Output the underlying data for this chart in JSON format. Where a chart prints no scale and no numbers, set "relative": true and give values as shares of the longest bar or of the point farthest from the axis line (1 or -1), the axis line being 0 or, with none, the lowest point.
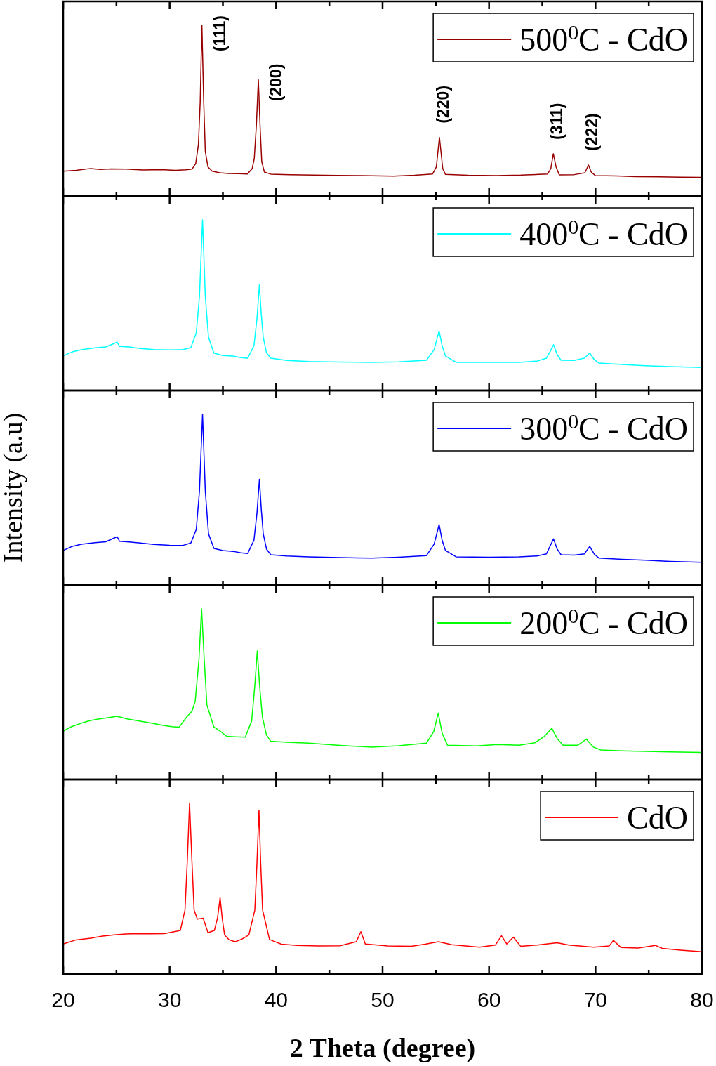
{
  "chart_data": [
    {
      "type": "line",
      "relative": true,
      "xlim": [
        20,
        80
      ],
      "xticks": [
        20,
        {
          "value": 25,
          "label": null
        },
        30,
        {
          "value": 35,
          "label": null
        },
        40,
        {
          "value": 45,
          "label": null
        },
        50,
        {
          "value": 55,
          "label": null
        },
        60,
        {
          "value": 65,
          "label": null
        },
        70,
        {
          "value": 75,
          "label": null
        },
        80
      ],
      "tick_labels": false,
      "legend": "top right",
      "annotations": [
        {
          "text": "(111)",
          "x": 33.03,
          "y": 1.0
        },
        {
          "text": "(200)",
          "x": 38.33,
          "y": 0.681
        },
        {
          "text": "(220)",
          "x": 55.34,
          "y": 0.343
        },
        {
          "text": "(311)",
          "x": 66.04,
          "y": 0.247
        },
        {
          "text": "(222)",
          "x": 69.34,
          "y": 0.181
        }
      ],
      "series": [
        {
          "name": "500$^{0}$C - CdO",
          "color": "#990000",
          "x": [
            20,
            21.2,
            22.6,
            23.5,
            24.5,
            25.9,
            27.5,
            29.2,
            30.5,
            31.5,
            32.1,
            32.45,
            32.7,
            32.87,
            33.03,
            33.2,
            33.35,
            33.6,
            34.0,
            34.7,
            35.5,
            36.5,
            37.3,
            37.75,
            37.95,
            38.15,
            38.33,
            38.5,
            38.65,
            38.9,
            39.5,
            41.3,
            43.5,
            45.7,
            48.0,
            51.0,
            53.0,
            54.7,
            55.05,
            55.2,
            55.34,
            55.5,
            55.65,
            55.9,
            58.0,
            60.7,
            63.0,
            65.5,
            65.8,
            66.04,
            66.3,
            66.6,
            68.0,
            69.0,
            69.34,
            69.6,
            70.0,
            72.0,
            73.8,
            76.0,
            78.0,
            80
          ],
          "values": [
            0.145,
            0.15,
            0.161,
            0.155,
            0.158,
            0.157,
            0.152,
            0.154,
            0.15,
            0.153,
            0.157,
            0.19,
            0.3,
            0.55,
            1.0,
            0.55,
            0.26,
            0.17,
            0.145,
            0.136,
            0.132,
            0.131,
            0.129,
            0.16,
            0.22,
            0.42,
            0.681,
            0.4,
            0.2,
            0.14,
            0.128,
            0.124,
            0.122,
            0.12,
            0.119,
            0.116,
            0.121,
            0.129,
            0.17,
            0.26,
            0.343,
            0.25,
            0.16,
            0.127,
            0.121,
            0.119,
            0.122,
            0.129,
            0.16,
            0.247,
            0.17,
            0.123,
            0.125,
            0.136,
            0.181,
            0.14,
            0.119,
            0.117,
            0.113,
            0.112,
            0.11,
            0.109
          ]
        }
      ]
    },
    {
      "type": "line",
      "relative": true,
      "xlim": [
        20,
        80
      ],
      "xticks": [
        20,
        {
          "value": 25,
          "label": null
        },
        30,
        {
          "value": 35,
          "label": null
        },
        40,
        {
          "value": 45,
          "label": null
        },
        50,
        {
          "value": 55,
          "label": null
        },
        60,
        {
          "value": 65,
          "label": null
        },
        70,
        {
          "value": 75,
          "label": null
        },
        80
      ],
      "tick_labels": false,
      "legend": "top right",
      "series": [
        {
          "name": "400$^{0}$C - CdO",
          "color": "#00ffff",
          "x": [
            20,
            20.8,
            21.7,
            23.0,
            24.0,
            25.07,
            25.3,
            26.2,
            27.25,
            28.5,
            30.0,
            31.2,
            31.99,
            32.5,
            32.8,
            33.09,
            33.35,
            33.65,
            34.16,
            35.0,
            35.94,
            36.7,
            37.33,
            37.92,
            38.2,
            38.43,
            38.6,
            38.79,
            39.1,
            39.5,
            41.0,
            43.06,
            46.0,
            48.98,
            51.5,
            54.12,
            54.84,
            55.31,
            55.6,
            55.91,
            56.9,
            60.0,
            62.82,
            64.5,
            65.39,
            65.75,
            66.06,
            66.4,
            66.77,
            68.0,
            68.95,
            69.46,
            69.9,
            70.33,
            72.5,
            74.68,
            77.0,
            80
          ],
          "values": [
            0.202,
            0.225,
            0.239,
            0.25,
            0.255,
            0.283,
            0.258,
            0.255,
            0.246,
            0.24,
            0.238,
            0.239,
            0.251,
            0.337,
            0.55,
            1.0,
            0.55,
            0.312,
            0.219,
            0.205,
            0.202,
            0.192,
            0.189,
            0.263,
            0.42,
            0.619,
            0.45,
            0.312,
            0.22,
            0.189,
            0.176,
            0.17,
            0.167,
            0.165,
            0.168,
            0.177,
            0.239,
            0.349,
            0.26,
            0.202,
            0.165,
            0.165,
            0.165,
            0.172,
            0.189,
            0.23,
            0.268,
            0.21,
            0.177,
            0.176,
            0.189,
            0.219,
            0.18,
            0.16,
            0.152,
            0.145,
            0.14,
            0.135
          ]
        }
      ]
    },
    {
      "type": "line",
      "relative": true,
      "xlim": [
        20,
        80
      ],
      "xticks": [
        20,
        {
          "value": 25,
          "label": null
        },
        30,
        {
          "value": 35,
          "label": null
        },
        40,
        {
          "value": 45,
          "label": null
        },
        50,
        {
          "value": 55,
          "label": null
        },
        60,
        {
          "value": 65,
          "label": null
        },
        70,
        {
          "value": 75,
          "label": null
        },
        80
      ],
      "tick_labels": false,
      "legend": "top right",
      "ylabel": "Intensity (a.u)",
      "series": [
        {
          "name": "300$^{0}$C - CdO",
          "color": "#0000ff",
          "x": [
            20,
            20.8,
            21.7,
            23.0,
            24.0,
            25.07,
            25.3,
            26.2,
            27.25,
            28.5,
            30.0,
            31.2,
            31.99,
            32.5,
            32.8,
            33.09,
            33.35,
            33.65,
            34.16,
            35.0,
            35.94,
            36.7,
            37.33,
            37.92,
            38.2,
            38.43,
            38.6,
            38.79,
            39.1,
            39.5,
            41.0,
            43.06,
            46.0,
            48.98,
            51.5,
            54.12,
            54.84,
            55.31,
            55.6,
            55.91,
            56.9,
            60.0,
            62.82,
            64.5,
            65.39,
            65.75,
            66.06,
            66.4,
            66.77,
            68.0,
            68.95,
            69.46,
            69.9,
            70.33,
            72.5,
            74.68,
            77.0,
            80
          ],
          "values": [
            0.202,
            0.225,
            0.239,
            0.248,
            0.253,
            0.283,
            0.256,
            0.252,
            0.246,
            0.238,
            0.233,
            0.231,
            0.246,
            0.325,
            0.55,
            1.0,
            0.55,
            0.3,
            0.214,
            0.202,
            0.197,
            0.188,
            0.184,
            0.263,
            0.42,
            0.619,
            0.45,
            0.3,
            0.21,
            0.177,
            0.17,
            0.165,
            0.16,
            0.157,
            0.163,
            0.172,
            0.239,
            0.354,
            0.26,
            0.202,
            0.165,
            0.163,
            0.165,
            0.17,
            0.182,
            0.23,
            0.27,
            0.21,
            0.177,
            0.175,
            0.182,
            0.226,
            0.18,
            0.157,
            0.15,
            0.145,
            0.138,
            0.133
          ]
        }
      ]
    },
    {
      "type": "line",
      "relative": true,
      "xlim": [
        20,
        80
      ],
      "xticks": [
        20,
        {
          "value": 25,
          "label": null
        },
        30,
        {
          "value": 35,
          "label": null
        },
        40,
        {
          "value": 45,
          "label": null
        },
        50,
        {
          "value": 55,
          "label": null
        },
        60,
        {
          "value": 65,
          "label": null
        },
        70,
        {
          "value": 75,
          "label": null
        },
        80
      ],
      "tick_labels": false,
      "legend": "top right",
      "series": [
        {
          "name": "200$^{0}$C - CdO",
          "color": "#00ff00",
          "x": [
            20,
            20.8,
            21.7,
            22.5,
            23.3,
            24.2,
            25.07,
            26.0,
            27.25,
            28.3,
            29.3,
            30.2,
            30.9,
            31.6,
            32.1,
            32.4,
            32.75,
            33.0,
            33.25,
            33.5,
            34.16,
            34.75,
            35.35,
            36.2,
            37.1,
            37.7,
            38.0,
            38.23,
            38.45,
            38.71,
            39.1,
            39.5,
            41.0,
            43.06,
            46.0,
            48.98,
            51.5,
            54.12,
            54.8,
            55.23,
            55.6,
            56.1,
            58.8,
            60.8,
            62.82,
            64.3,
            65.2,
            65.9,
            66.4,
            66.96,
            68.35,
            69.14,
            69.8,
            70.5,
            72.5,
            74.68,
            77.0,
            80
          ],
          "values": [
            0.283,
            0.31,
            0.33,
            0.345,
            0.354,
            0.362,
            0.37,
            0.355,
            0.342,
            0.33,
            0.318,
            0.31,
            0.307,
            0.366,
            0.4,
            0.459,
            0.7,
            1.0,
            0.7,
            0.436,
            0.307,
            0.283,
            0.253,
            0.25,
            0.248,
            0.342,
            0.55,
            0.753,
            0.55,
            0.366,
            0.26,
            0.224,
            0.218,
            0.213,
            0.2,
            0.189,
            0.198,
            0.213,
            0.28,
            0.389,
            0.27,
            0.201,
            0.197,
            0.205,
            0.201,
            0.215,
            0.253,
            0.3,
            0.24,
            0.201,
            0.201,
            0.236,
            0.19,
            0.173,
            0.168,
            0.165,
            0.162,
            0.158
          ]
        }
      ]
    },
    {
      "type": "line",
      "relative": true,
      "xlim": [
        20,
        80
      ],
      "xticks": [
        20,
        {
          "value": 25,
          "label": null
        },
        30,
        {
          "value": 35,
          "label": null
        },
        40,
        {
          "value": 45,
          "label": null
        },
        50,
        {
          "value": 55,
          "label": null
        },
        60,
        {
          "value": 65,
          "label": null
        },
        70,
        {
          "value": 75,
          "label": null
        },
        80
      ],
      "tick_labels": "x",
      "legend": "top right",
      "xlabel": "2 Theta (degree)",
      "series": [
        {
          "name": "CdO",
          "color": "#ff0000",
          "x": [
            20,
            21.2,
            22.6,
            23.7,
            24.8,
            25.9,
            26.9,
            28.2,
            29.5,
            31.0,
            31.44,
            31.65,
            31.87,
            32.1,
            32.3,
            32.6,
            33.15,
            33.6,
            34.2,
            34.5,
            34.74,
            34.95,
            35.16,
            35.6,
            36.15,
            36.8,
            37.44,
            38.0,
            38.2,
            38.39,
            38.55,
            38.73,
            39.38,
            40.5,
            41.96,
            44.0,
            46.0,
            47.53,
            47.96,
            48.38,
            50.5,
            52.68,
            54.0,
            55.25,
            56.5,
            59.1,
            60.6,
            61.17,
            61.67,
            62.28,
            62.97,
            64.5,
            66.4,
            67.5,
            69.83,
            71.3,
            71.68,
            72.4,
            74.0,
            75.62,
            76.27,
            78.0,
            80
          ],
          "values": [
            0.176,
            0.2,
            0.21,
            0.222,
            0.229,
            0.235,
            0.237,
            0.236,
            0.237,
            0.255,
            0.375,
            0.65,
            1.0,
            0.65,
            0.375,
            0.322,
            0.327,
            0.242,
            0.255,
            0.33,
            0.447,
            0.32,
            0.229,
            0.2,
            0.189,
            0.205,
            0.229,
            0.375,
            0.65,
            0.96,
            0.65,
            0.375,
            0.202,
            0.175,
            0.168,
            0.165,
            0.166,
            0.189,
            0.248,
            0.176,
            0.165,
            0.163,
            0.175,
            0.189,
            0.172,
            0.157,
            0.17,
            0.224,
            0.176,
            0.216,
            0.163,
            0.17,
            0.183,
            0.17,
            0.157,
            0.165,
            0.197,
            0.155,
            0.152,
            0.168,
            0.15,
            0.14,
            0.131
          ]
        }
      ]
    }
  ]
}
